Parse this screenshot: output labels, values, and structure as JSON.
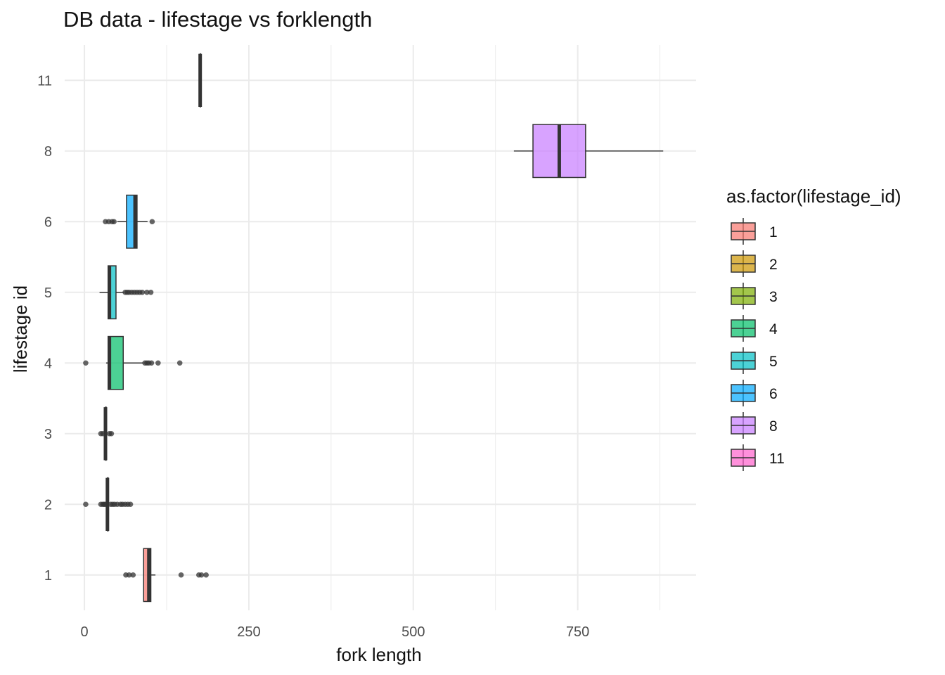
{
  "chart_data": {
    "type": "boxplot",
    "title": "DB data - lifestage vs forklength",
    "xlabel": "fork length",
    "ylabel": "lifestage id",
    "xlim": [
      -30,
      930
    ],
    "x_ticks": [
      0,
      250,
      500,
      750
    ],
    "x_tick_labels": [
      "0",
      "250",
      "500",
      "750"
    ],
    "categories": [
      "1",
      "2",
      "3",
      "4",
      "5",
      "6",
      "8",
      "11"
    ],
    "grid": true,
    "legend": {
      "title": "as.factor(lifestage_id)",
      "position": "right"
    },
    "series": [
      {
        "name": "1",
        "color": "#F8766D",
        "min": 90,
        "q1": 90,
        "median": 98,
        "q3": 101,
        "max": 108,
        "outliers": [
          63,
          68,
          74,
          147,
          174,
          178,
          185
        ]
      },
      {
        "name": "2",
        "color": "#CD9600",
        "min": 35,
        "q1": 35,
        "median": 35,
        "q3": 36,
        "max": 36,
        "outliers": [
          2,
          25,
          28,
          30,
          32,
          40,
          43,
          46,
          50,
          55,
          58,
          62,
          66,
          70
        ]
      },
      {
        "name": "3",
        "color": "#7CAE00",
        "min": 32,
        "q1": 32,
        "median": 32,
        "q3": 33,
        "max": 33,
        "outliers": [
          25,
          28,
          38,
          41
        ]
      },
      {
        "name": "4",
        "color": "#00BE67",
        "min": 33,
        "q1": 36,
        "median": 38,
        "q3": 59,
        "max": 90,
        "outliers": [
          2,
          92,
          95,
          98,
          102,
          112,
          145
        ]
      },
      {
        "name": "5",
        "color": "#00BFC4",
        "min": 23,
        "q1": 36,
        "median": 38,
        "q3": 48,
        "max": 60,
        "outliers": [
          62,
          65,
          68,
          72,
          76,
          80,
          84,
          88,
          95,
          101
        ]
      },
      {
        "name": "6",
        "color": "#00A9FF",
        "min": 50,
        "q1": 64,
        "median": 77,
        "q3": 80,
        "max": 96,
        "outliers": [
          32,
          37,
          42,
          45,
          103
        ]
      },
      {
        "name": "8",
        "color": "#C77CFF",
        "min": 653,
        "q1": 682,
        "median": 722,
        "q3": 762,
        "max": 880,
        "outliers": []
      },
      {
        "name": "11",
        "color": "#FF61CC",
        "min": 176,
        "q1": 176,
        "median": 176,
        "q3": 176,
        "max": 176,
        "outliers": []
      }
    ]
  }
}
